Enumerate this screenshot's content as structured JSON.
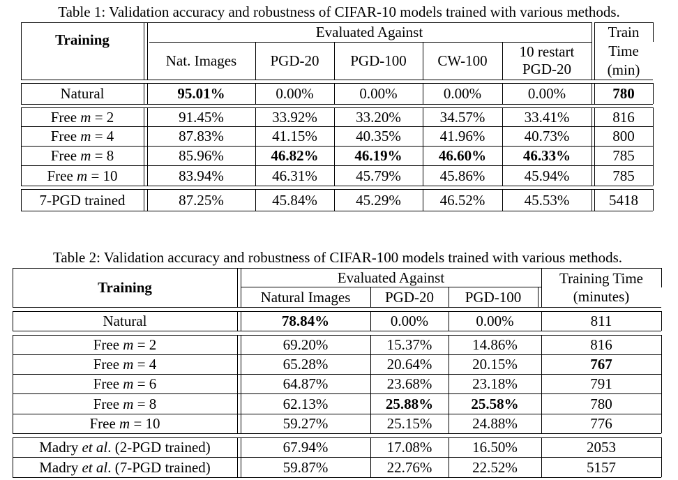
{
  "table1": {
    "caption": "Table 1: Validation accuracy and robustness of CIFAR-10 models trained with various methods.",
    "header": {
      "training": "Training",
      "evaluated_against": "Evaluated Against",
      "columns": [
        "Nat. Images",
        "PGD-20",
        "PGD-100",
        "CW-100"
      ],
      "restart_line1": "10 restart",
      "restart_line2": "PGD-20",
      "time_line1": "Train",
      "time_line2": "Time",
      "time_line3": "(min)"
    },
    "rows": [
      {
        "label": "Natural",
        "values": [
          "95.01%",
          "0.00%",
          "0.00%",
          "0.00%",
          "0.00%"
        ],
        "time": "780"
      },
      {
        "label": "Free m = 2",
        "values": [
          "91.45%",
          "33.92%",
          "33.20%",
          "34.57%",
          "33.41%"
        ],
        "time": "816"
      },
      {
        "label": "Free m = 4",
        "values": [
          "87.83%",
          "41.15%",
          "40.35%",
          "41.96%",
          "40.73%"
        ],
        "time": "800"
      },
      {
        "label": "Free m = 8",
        "values": [
          "85.96%",
          "46.82%",
          "46.19%",
          "46.60%",
          "46.33%"
        ],
        "time": "785"
      },
      {
        "label": "Free m = 10",
        "values": [
          "83.94%",
          "46.31%",
          "45.79%",
          "45.86%",
          "45.94%"
        ],
        "time": "785"
      },
      {
        "label": "7-PGD trained",
        "values": [
          "87.25%",
          "45.84%",
          "45.29%",
          "46.52%",
          "45.53%"
        ],
        "time": "5418"
      }
    ]
  },
  "table2": {
    "caption": "Table 2: Validation accuracy and robustness of CIFAR-100 models trained with various methods.",
    "header": {
      "training": "Training",
      "evaluated_against": "Evaluated Against",
      "columns": [
        "Natural Images",
        "PGD-20",
        "PGD-100"
      ],
      "time_line1": "Training Time",
      "time_line2": "(minutes)"
    },
    "rows": [
      {
        "label": "Natural",
        "values": [
          "78.84%",
          "0.00%",
          "0.00%"
        ],
        "time": "811"
      },
      {
        "label": "Free m = 2",
        "values": [
          "69.20%",
          "15.37%",
          "14.86%"
        ],
        "time": "816"
      },
      {
        "label": "Free m = 4",
        "values": [
          "65.28%",
          "20.64%",
          "20.15%"
        ],
        "time": "767"
      },
      {
        "label": "Free m = 6",
        "values": [
          "64.87%",
          "23.68%",
          "23.18%"
        ],
        "time": "791"
      },
      {
        "label": "Free m = 8",
        "values": [
          "62.13%",
          "25.88%",
          "25.58%"
        ],
        "time": "780"
      },
      {
        "label": "Free m = 10",
        "values": [
          "59.27%",
          "25.15%",
          "24.88%"
        ],
        "time": "776"
      },
      {
        "label": "Madry et al. (2-PGD trained)",
        "values": [
          "67.94%",
          "17.08%",
          "16.50%"
        ],
        "time": "2053"
      },
      {
        "label": "Madry et al. (7-PGD trained)",
        "values": [
          "59.87%",
          "22.76%",
          "22.52%"
        ],
        "time": "5157"
      }
    ]
  }
}
